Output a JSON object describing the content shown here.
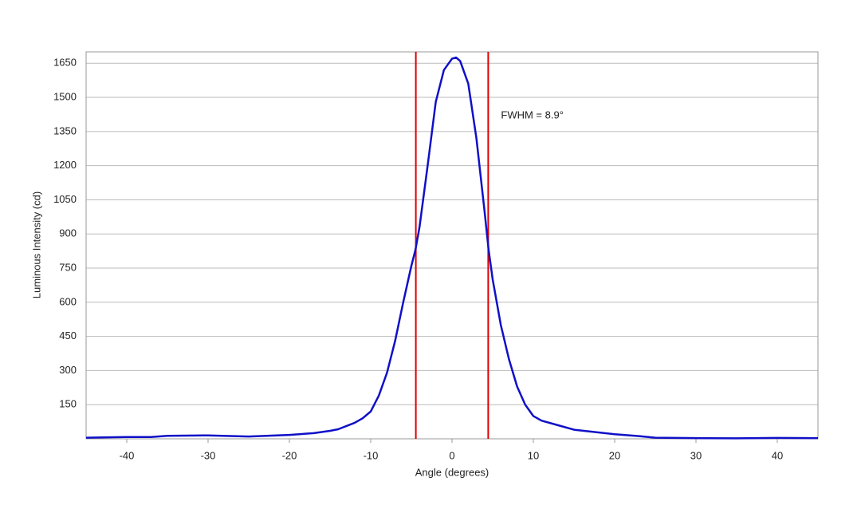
{
  "chart_data": {
    "type": "line",
    "x_label": "Angle (degrees)",
    "y_label": "Luminous Intensity (cd)",
    "annotation": "FWHM = 8.9°",
    "x": [
      -45,
      -40,
      -37,
      -35,
      -30,
      -25,
      -20,
      -17,
      -15,
      -14,
      -12,
      -11,
      -10,
      -9,
      -8,
      -7,
      -6,
      -5,
      -4.5,
      -4,
      -3,
      -2,
      -1,
      0,
      0.5,
      1,
      2,
      3,
      4,
      4.5,
      5,
      6,
      7,
      8,
      9,
      10,
      11,
      13,
      15,
      18,
      20,
      23,
      25,
      30,
      35,
      40,
      45
    ],
    "series": [
      {
        "color": "#1010c8",
        "values": [
          5,
          8,
          8,
          13,
          15,
          10,
          17,
          25,
          35,
          42,
          70,
          90,
          120,
          190,
          290,
          430,
          600,
          760,
          830,
          930,
          1200,
          1480,
          1620,
          1670,
          1675,
          1660,
          1560,
          1320,
          1000,
          830,
          700,
          500,
          350,
          230,
          150,
          100,
          80,
          60,
          40,
          28,
          20,
          12,
          5,
          3,
          2,
          4,
          3
        ]
      }
    ],
    "markers": {
      "color": "#e00000",
      "values": [
        -4.45,
        4.45
      ]
    },
    "xlim": [
      -45,
      45
    ],
    "ylim": [
      0,
      1700
    ],
    "xticks": [
      -40,
      -30,
      -20,
      -10,
      0,
      10,
      20,
      30,
      40
    ],
    "yticks": [
      150,
      300,
      450,
      600,
      750,
      900,
      1050,
      1200,
      1350,
      1500,
      1650
    ],
    "grid": true
  }
}
